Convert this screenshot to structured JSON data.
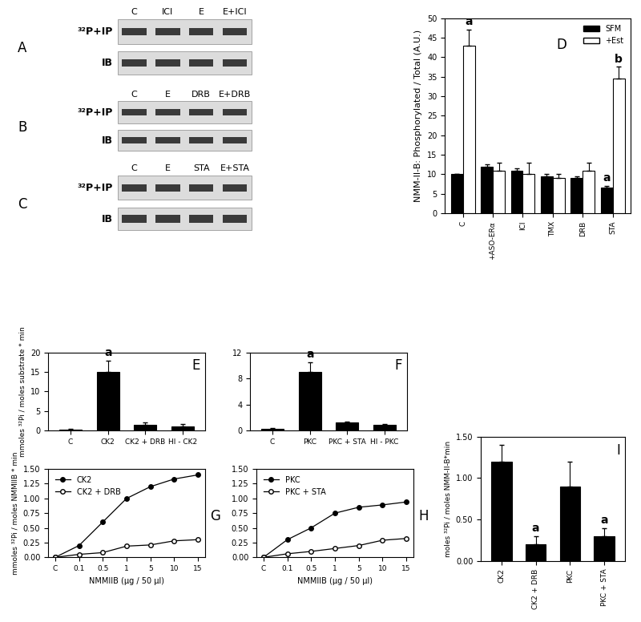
{
  "blots": [
    {
      "panel": "A",
      "lanes": [
        "C",
        "ICI",
        "E",
        "E+ICI"
      ],
      "rows": [
        "³²P+IP",
        "IB"
      ]
    },
    {
      "panel": "B",
      "lanes": [
        "C",
        "E",
        "DRB",
        "E+DRB"
      ],
      "rows": [
        "³²P+IP",
        "IB"
      ]
    },
    {
      "panel": "C",
      "lanes": [
        "C",
        "E",
        "STA",
        "E+STA"
      ],
      "rows": [
        "³²P+IP",
        "IB"
      ]
    }
  ],
  "chart_data": [
    {
      "type": "bar",
      "panel": "D",
      "y_label": "NMM-II-B: Phosphorylated / Total (A.U.)",
      "categories": [
        "C",
        "+ASO-ERα",
        "ICI",
        "TMX",
        "DRB",
        "STA"
      ],
      "series": [
        {
          "name": "SFM",
          "color": "#000000",
          "values": [
            10,
            12,
            11,
            9.5,
            9,
            6.5
          ],
          "errors": [
            0,
            0.5,
            0.5,
            0.5,
            0.5,
            0.5
          ],
          "letters": [
            null,
            null,
            null,
            null,
            null,
            "a"
          ]
        },
        {
          "name": "+Est",
          "color": "#ffffff",
          "values": [
            43,
            11,
            10,
            9,
            11,
            34.5
          ],
          "errors": [
            4,
            2,
            3,
            1,
            2,
            3
          ],
          "letters": [
            "a",
            null,
            null,
            null,
            null,
            "b"
          ]
        }
      ],
      "ylim": [
        0,
        50
      ],
      "yticks": [
        0,
        5,
        10,
        15,
        20,
        25,
        30,
        35,
        40,
        45,
        50
      ],
      "legend": "upper right"
    },
    {
      "type": "bar",
      "panel": "E",
      "y_label": "mmoles ³²Pi / moles substrate * min",
      "categories": [
        "C",
        "CK2",
        "CK2 + DRB",
        "HI - CK2"
      ],
      "values": [
        0.3,
        15,
        1.5,
        1.1
      ],
      "errors": [
        0.2,
        3,
        0.5,
        0.5
      ],
      "letters": [
        null,
        "a",
        null,
        null
      ],
      "color": "#000000",
      "ylim": [
        0,
        20
      ],
      "yticks": [
        0,
        5,
        10,
        15,
        20
      ]
    },
    {
      "type": "bar",
      "panel": "F",
      "categories": [
        "C",
        "PKC",
        "PKC + STA",
        "HI - PKC"
      ],
      "values": [
        0.2,
        9,
        1.2,
        0.9
      ],
      "errors": [
        0.2,
        1.5,
        0.2,
        0.1
      ],
      "letters": [
        null,
        "a",
        null,
        null
      ],
      "color": "#000000",
      "ylim": [
        0,
        12
      ],
      "yticks": [
        0,
        4,
        8,
        12
      ]
    },
    {
      "type": "line",
      "panel": "G",
      "x_label": "NMMIIB (µg / 50 µl)",
      "y_label": "mmoles ³²Pi / moles NMMIIB * min",
      "categories": [
        "C",
        "0.1",
        "0.5",
        "1",
        "5",
        "10",
        "15"
      ],
      "series": [
        {
          "name": "CK2",
          "color": "#000000",
          "marker": "o",
          "values": [
            0,
            0.2,
            0.6,
            1.0,
            1.2,
            1.33,
            1.4
          ]
        },
        {
          "name": "CK2 + DRB",
          "color": "#ffffff",
          "marker": "o",
          "values": [
            0,
            0.05,
            0.08,
            0.19,
            0.21,
            0.28,
            0.3
          ]
        }
      ],
      "ylim": [
        0,
        1.5
      ],
      "yticks": [
        {
          "value": 0,
          "label": "0.00"
        },
        {
          "value": 0.25,
          "label": "0.25"
        },
        {
          "value": 0.5,
          "label": "0.50"
        },
        {
          "value": 0.75,
          "label": "0.75"
        },
        {
          "value": 1.0,
          "label": "1.00"
        },
        {
          "value": 1.25,
          "label": "1.25"
        },
        {
          "value": 1.5,
          "label": "1.50"
        }
      ],
      "legend": "upper left"
    },
    {
      "type": "line",
      "panel": "H",
      "x_label": "NMMIIB (µg / 50 µl)",
      "categories": [
        "C",
        "0.1",
        "0.5",
        "1",
        "5",
        "10",
        "15"
      ],
      "series": [
        {
          "name": "PKC",
          "color": "#000000",
          "marker": "o",
          "values": [
            0,
            0.3,
            0.5,
            0.75,
            0.85,
            0.89,
            0.94
          ]
        },
        {
          "name": "PKC + STA",
          "color": "#ffffff",
          "marker": "o",
          "values": [
            0,
            0.06,
            0.1,
            0.15,
            0.2,
            0.29,
            0.32
          ]
        }
      ],
      "ylim": [
        0,
        1.5
      ],
      "yticks": [
        {
          "value": 0,
          "label": "0.00"
        },
        {
          "value": 0.25,
          "label": "0.25"
        },
        {
          "value": 0.5,
          "label": "0.50"
        },
        {
          "value": 0.75,
          "label": "0.75"
        },
        {
          "value": 1.0,
          "label": "1.00"
        },
        {
          "value": 1.25,
          "label": "1.25"
        },
        {
          "value": 1.5,
          "label": "1.50"
        }
      ],
      "legend": "upper left"
    },
    {
      "type": "bar",
      "panel": "I",
      "y_label": "moles ³²Pi / moles NMM-II-B*min",
      "categories": [
        "CK2",
        "CK2 + DRB",
        "PKC",
        "PKC + STA"
      ],
      "values": [
        1.2,
        0.2,
        0.9,
        0.3
      ],
      "errors": [
        0.2,
        0.1,
        0.3,
        0.1
      ],
      "letters": [
        null,
        "a",
        null,
        "a"
      ],
      "color": "#000000",
      "ylim": [
        0,
        1.5
      ],
      "yticks": [
        {
          "value": 0,
          "label": "0.00"
        },
        {
          "value": 0.5,
          "label": "0.50"
        },
        {
          "value": 1.0,
          "label": "1.00"
        },
        {
          "value": 1.5,
          "label": "1.50"
        }
      ]
    }
  ]
}
